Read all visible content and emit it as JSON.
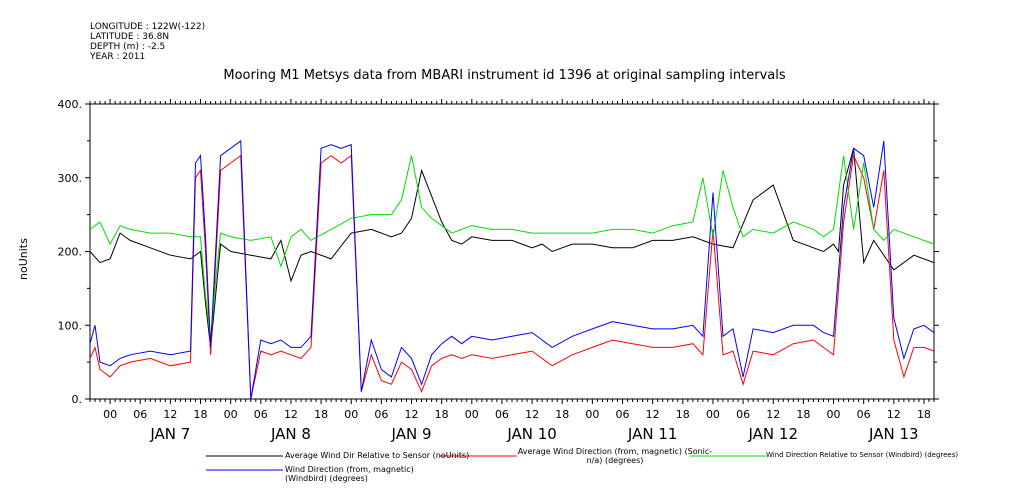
{
  "metadata": {
    "longitude": "LONGITUDE : 122W(-122)",
    "latitude": "LATITUDE : 36.8N",
    "depth": "DEPTH (m) : -2.5",
    "year": "YEAR : 2011"
  },
  "chart_data": {
    "type": "line",
    "title": "Mooring M1 Metsys data from MBARI instrument id 1396 at original sampling intervals",
    "ylabel": "noUnits",
    "xlabel": "",
    "ylim": [
      0,
      400
    ],
    "yticks": [
      0,
      100,
      200,
      300,
      400
    ],
    "ytick_labels": [
      "0.",
      "100.",
      "200.",
      "300.",
      "400."
    ],
    "xlim_hours": [
      -4,
      164
    ],
    "hour_ticks": [
      "00",
      "06",
      "12",
      "18",
      "00",
      "06",
      "12",
      "18",
      "00",
      "06",
      "12",
      "18",
      "00",
      "06",
      "12",
      "18",
      "00",
      "06",
      "12",
      "18",
      "00",
      "06",
      "12",
      "18",
      "00",
      "06",
      "12",
      "18"
    ],
    "day_labels": [
      "JAN  7",
      "JAN  8",
      "JAN  9",
      "JAN 10",
      "JAN 11",
      "JAN 12",
      "JAN 13"
    ],
    "grid": false,
    "legend_placement": "bottom",
    "series": [
      {
        "name": "Average Wind Dir Relative to Sensor (noUnits)",
        "color": "#000000",
        "x_hours": [
          -4,
          -2,
          0,
          2,
          4,
          8,
          12,
          16,
          18,
          19,
          20,
          22,
          24,
          28,
          32,
          34,
          36,
          38,
          40,
          44,
          48,
          52,
          56,
          58,
          60,
          62,
          66,
          68,
          70,
          72,
          76,
          80,
          82,
          84,
          86,
          88,
          90,
          92,
          96,
          100,
          104,
          108,
          112,
          116,
          120,
          124,
          128,
          132,
          136,
          140,
          142,
          143,
          144,
          145,
          146,
          148,
          150,
          152,
          156,
          160,
          164
        ],
        "values": [
          200,
          185,
          190,
          225,
          215,
          205,
          195,
          190,
          200,
          130,
          70,
          210,
          200,
          195,
          190,
          215,
          160,
          195,
          200,
          190,
          225,
          230,
          220,
          225,
          245,
          310,
          240,
          215,
          210,
          220,
          215,
          215,
          210,
          205,
          210,
          200,
          205,
          210,
          210,
          205,
          205,
          215,
          215,
          220,
          210,
          205,
          270,
          290,
          215,
          205,
          200,
          205,
          210,
          200,
          290,
          340,
          185,
          215,
          175,
          195,
          185
        ]
      },
      {
        "name": "Average Wind Direction (from, magnetic) (Sonic-n/a) (degrees)",
        "color": "#ff0000",
        "x_hours": [
          -4,
          -3,
          -2,
          0,
          2,
          4,
          8,
          12,
          16,
          17,
          18,
          19,
          20,
          22,
          24,
          26,
          28,
          30,
          32,
          34,
          36,
          38,
          40,
          42,
          44,
          46,
          48,
          50,
          52,
          54,
          56,
          58,
          60,
          62,
          64,
          66,
          68,
          70,
          72,
          76,
          80,
          84,
          88,
          92,
          96,
          100,
          104,
          108,
          112,
          116,
          118,
          120,
          122,
          124,
          126,
          128,
          132,
          136,
          140,
          142,
          144,
          146,
          148,
          150,
          152,
          154,
          156,
          158,
          160,
          162,
          164
        ],
        "values": [
          55,
          70,
          40,
          30,
          45,
          50,
          55,
          45,
          50,
          300,
          310,
          200,
          60,
          310,
          320,
          330,
          0,
          65,
          60,
          65,
          60,
          55,
          70,
          320,
          330,
          320,
          330,
          10,
          60,
          25,
          20,
          50,
          40,
          10,
          45,
          55,
          60,
          55,
          60,
          55,
          60,
          65,
          45,
          60,
          70,
          80,
          75,
          70,
          70,
          75,
          60,
          230,
          60,
          65,
          20,
          65,
          60,
          75,
          80,
          70,
          60,
          240,
          330,
          300,
          230,
          310,
          80,
          30,
          70,
          70,
          65
        ]
      },
      {
        "name": "Wind Direction Relative to Sensor (Windbird) (degrees)",
        "color": "#00dd00",
        "x_hours": [
          -4,
          -2,
          0,
          2,
          4,
          8,
          12,
          16,
          18,
          19,
          20,
          21,
          22,
          24,
          28,
          32,
          34,
          36,
          38,
          40,
          44,
          48,
          52,
          56,
          58,
          60,
          62,
          64,
          66,
          68,
          72,
          76,
          80,
          84,
          88,
          92,
          96,
          100,
          104,
          108,
          112,
          116,
          118,
          120,
          122,
          124,
          126,
          128,
          132,
          136,
          140,
          142,
          144,
          146,
          148,
          150,
          152,
          154,
          156,
          160,
          164
        ],
        "values": [
          230,
          240,
          210,
          235,
          230,
          225,
          225,
          220,
          220,
          140,
          80,
          160,
          225,
          220,
          215,
          220,
          180,
          220,
          230,
          215,
          230,
          245,
          250,
          250,
          270,
          330,
          260,
          245,
          235,
          225,
          235,
          230,
          230,
          225,
          225,
          225,
          225,
          230,
          230,
          225,
          235,
          240,
          300,
          220,
          310,
          260,
          220,
          230,
          225,
          240,
          230,
          220,
          230,
          330,
          230,
          320,
          230,
          215,
          230,
          220,
          210
        ]
      },
      {
        "name": "Wind Direction (from, magnetic) (Windbird) (degrees)",
        "color": "#0000ff",
        "x_hours": [
          -4,
          -3,
          -2,
          0,
          2,
          4,
          8,
          12,
          16,
          17,
          18,
          19,
          20,
          22,
          24,
          26,
          28,
          30,
          32,
          34,
          36,
          38,
          40,
          42,
          44,
          46,
          48,
          50,
          52,
          54,
          56,
          58,
          60,
          62,
          64,
          66,
          68,
          70,
          72,
          76,
          80,
          84,
          88,
          92,
          96,
          100,
          104,
          108,
          112,
          116,
          118,
          120,
          122,
          124,
          126,
          128,
          132,
          136,
          140,
          142,
          144,
          146,
          148,
          150,
          152,
          154,
          156,
          158,
          160,
          162,
          164
        ],
        "values": [
          75,
          100,
          50,
          45,
          55,
          60,
          65,
          60,
          65,
          320,
          330,
          220,
          70,
          330,
          340,
          350,
          0,
          80,
          75,
          80,
          70,
          70,
          85,
          340,
          345,
          340,
          345,
          10,
          80,
          40,
          30,
          70,
          55,
          20,
          60,
          75,
          85,
          75,
          85,
          80,
          85,
          90,
          70,
          85,
          95,
          105,
          100,
          95,
          95,
          100,
          85,
          280,
          85,
          95,
          30,
          95,
          90,
          100,
          100,
          90,
          85,
          260,
          340,
          330,
          260,
          350,
          110,
          55,
          95,
          100,
          90
        ]
      }
    ]
  }
}
